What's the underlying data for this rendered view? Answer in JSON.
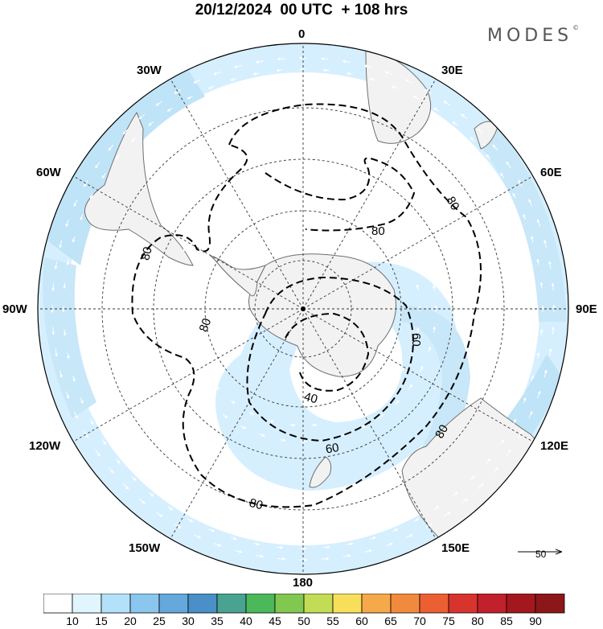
{
  "header": {
    "title": "20/12/2024  00 UTC  + 108 hrs",
    "brand": "MODES",
    "brand_mark": "©"
  },
  "map": {
    "projection": "south-polar-stereographic",
    "field": "wind speed (shaded) with wind vectors and contours",
    "longitude_labels": {
      "top": "0",
      "top_left": "30W",
      "top_right": "30E",
      "upper_left": "60W",
      "upper_right": "60E",
      "left": "90W",
      "right": "90E",
      "lower_left": "120W",
      "lower_right": "120E",
      "bottom_left": "150W",
      "bottom_right": "150E",
      "bottom": "180"
    },
    "contour_labels": [
      "80",
      "80",
      "80",
      "60",
      "80",
      "40",
      "60",
      "80"
    ],
    "colors": {
      "land": "#f2f2f2",
      "coast": "#6e6e6e",
      "shade_15": "#d6efff",
      "shade_20": "#bfe3f7",
      "shade_25": "#9fd0ef",
      "grid": "#333333",
      "contour": "#000000"
    }
  },
  "reference_vector": {
    "label": "50"
  },
  "colorbar": {
    "ticks": [
      "10",
      "15",
      "20",
      "25",
      "30",
      "35",
      "40",
      "45",
      "50",
      "55",
      "60",
      "65",
      "70",
      "75",
      "80",
      "85",
      "90"
    ],
    "colors": [
      "#ffffff",
      "#e1f5fe",
      "#b3e1fa",
      "#8ac6ee",
      "#64a8dc",
      "#4a8fc8",
      "#49a391",
      "#4bb85a",
      "#80c850",
      "#c3dc55",
      "#f7df5c",
      "#f5a94a",
      "#f28a3e",
      "#ec5f33",
      "#d8342e",
      "#c1212a",
      "#a3181d",
      "#8c1718"
    ]
  }
}
